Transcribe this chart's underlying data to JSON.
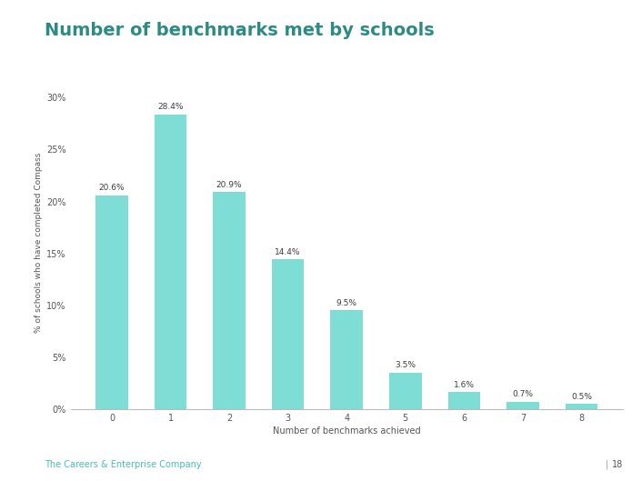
{
  "title": "Number of benchmarks met by schools",
  "categories": [
    0,
    1,
    2,
    3,
    4,
    5,
    6,
    7,
    8
  ],
  "values": [
    20.6,
    28.4,
    20.9,
    14.4,
    9.5,
    3.5,
    1.6,
    0.7,
    0.5
  ],
  "labels": [
    "20.6%",
    "28.4%",
    "20.9%",
    "14.4%",
    "9.5%",
    "3.5%",
    "1.6%",
    "0.7%",
    "0.5%"
  ],
  "bar_color": "#7EDDD4",
  "xlabel": "Number of benchmarks achieved",
  "ylabel": "% of schools who have completed Compass",
  "yticks": [
    0,
    5,
    10,
    15,
    20,
    25,
    30
  ],
  "ytick_labels": [
    "0%",
    "5%",
    "10%",
    "15%",
    "20%",
    "25%",
    "30%"
  ],
  "ylim": [
    0,
    32
  ],
  "background_color": "#ffffff",
  "title_color": "#2E8B84",
  "title_fontsize": 14,
  "axis_color": "#bbbbbb",
  "label_fontsize": 6.5,
  "tick_fontsize": 7,
  "ylabel_fontsize": 6.5,
  "xlabel_fontsize": 7,
  "footer_text": "The Careers & Enterprise Company",
  "footer_color": "#4bbfb4",
  "page_number": "18"
}
